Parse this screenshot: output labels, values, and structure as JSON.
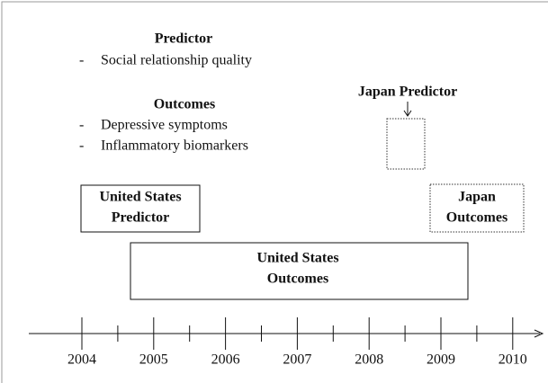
{
  "legend": {
    "predictor_heading": "Predictor",
    "predictor_items": [
      "Social relationship quality"
    ],
    "outcomes_heading": "Outcomes",
    "outcomes_items": [
      "Depressive symptoms",
      "Inflammatory biomarkers"
    ],
    "bullet": "-"
  },
  "boxes": {
    "japan_predictor_label": "Japan Predictor",
    "us_predictor": [
      "United States",
      "Predictor"
    ],
    "japan_outcomes": [
      "Japan",
      "Outcomes"
    ],
    "us_outcomes": [
      "United States",
      "Outcomes"
    ]
  },
  "timeline": {
    "years": [
      "2004",
      "2005",
      "2006",
      "2007",
      "2008",
      "2009",
      "2010"
    ]
  }
}
